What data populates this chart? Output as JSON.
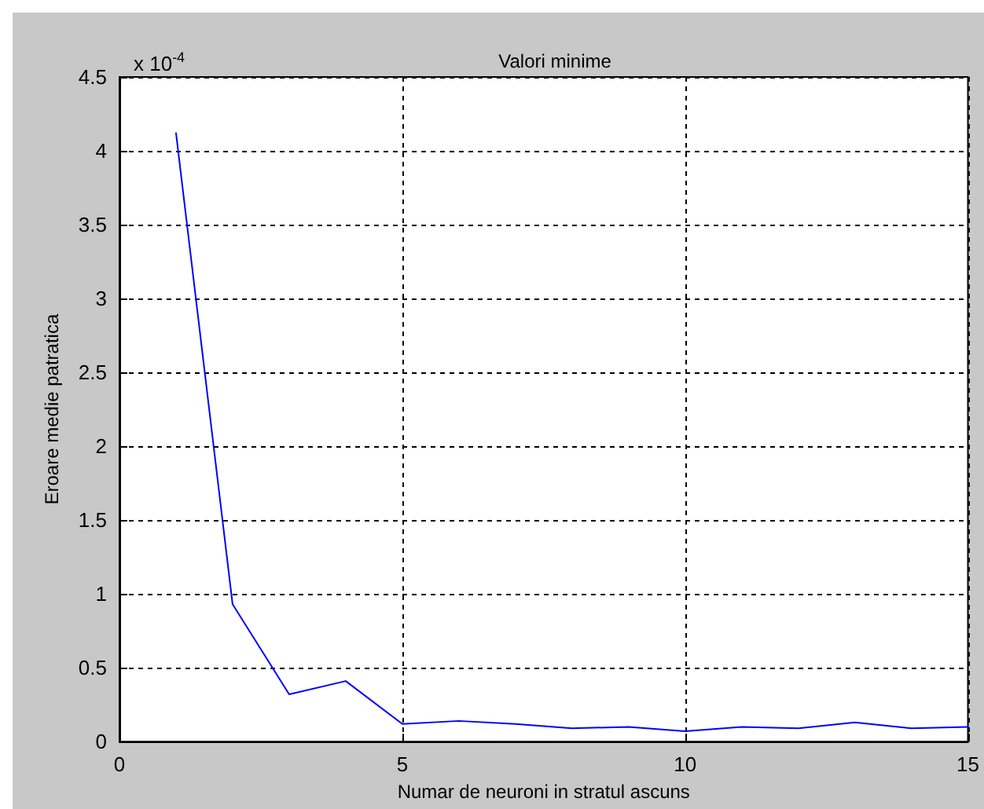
{
  "chart_data": {
    "type": "line",
    "title": "Valori minime",
    "xlabel": "Numar de neuroni in stratul ascuns",
    "ylabel": "Eroare medie patratica",
    "annotations": [
      "x 10$^{-4}$"
    ],
    "x": [
      1,
      2,
      3,
      4,
      5,
      6,
      7,
      8,
      9,
      10,
      11,
      12,
      13,
      14,
      15
    ],
    "series": [
      {
        "color": "#0000ff",
        "values": [
          4.12,
          0.93,
          0.32,
          0.41,
          0.12,
          0.14,
          0.12,
          0.09,
          0.1,
          0.07,
          0.1,
          0.09,
          0.13,
          0.09,
          0.1
        ]
      }
    ],
    "xlim": [
      0,
      15
    ],
    "xticks": [
      0,
      5,
      10,
      15
    ],
    "ylim": [
      0,
      4.5
    ],
    "yticks": [
      0,
      0.5,
      1,
      1.5,
      2,
      2.5,
      3,
      3.5,
      4,
      4.5
    ],
    "grid": true,
    "marker": "none",
    "line_style": "solid"
  }
}
